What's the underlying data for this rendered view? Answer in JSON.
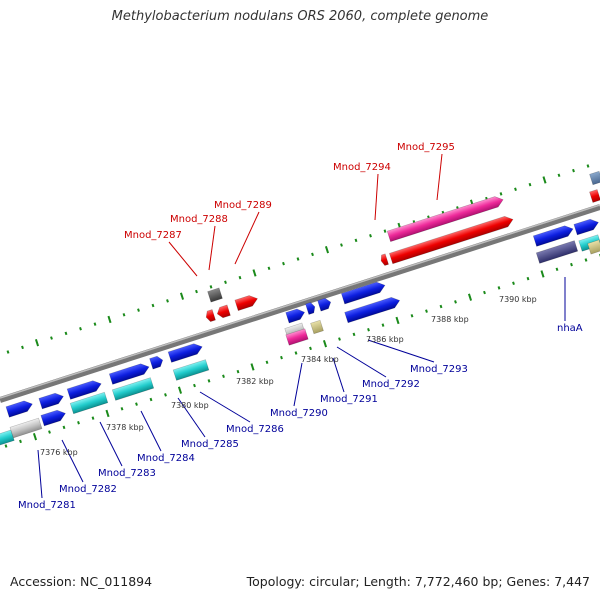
{
  "title": "Methylobacterium nodulans ORS 2060, complete genome",
  "footer": {
    "accession": "Accession: NC_011894",
    "summary": "Topology: circular; Length: 7,772,460 bp; Genes: 7,447"
  },
  "colors": {
    "forward_label": "#cc0000",
    "reverse_label": "#000099",
    "ticks": "#1a8a1a",
    "backbone": "#888888"
  },
  "kbp_labels": [
    "7376 kbp",
    "7378 kbp",
    "7380 kbp",
    "7382 kbp",
    "7384 kbp",
    "7386 kbp",
    "7388 kbp",
    "7390 kbp"
  ],
  "forward_genes": [
    "Mnod_7287",
    "Mnod_7288",
    "Mnod_7289",
    "Mnod_7294",
    "Mnod_7295"
  ],
  "reverse_genes": [
    "Mnod_7281",
    "Mnod_7282",
    "Mnod_7283",
    "Mnod_7284",
    "Mnod_7285",
    "Mnod_7286",
    "Mnod_7290",
    "Mnod_7291",
    "Mnod_7292",
    "Mnod_7293",
    "nhaA"
  ]
}
